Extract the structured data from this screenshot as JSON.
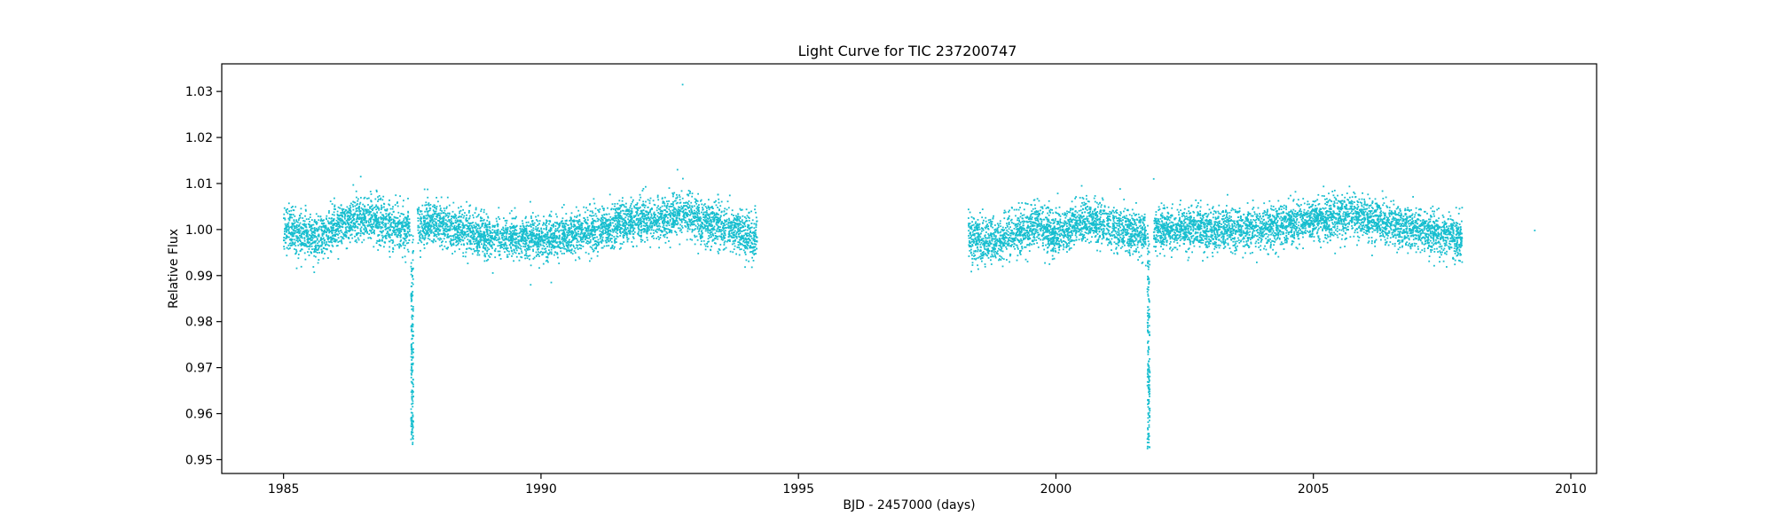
{
  "chart_data": {
    "type": "scatter",
    "title": "Light Curve for TIC 237200747",
    "xlabel": "BJD - 2457000 (days)",
    "ylabel": "Relative Flux",
    "xlim": [
      1983.8,
      2010.5
    ],
    "ylim": [
      0.947,
      1.036
    ],
    "xticks": [
      1985,
      1990,
      1995,
      2000,
      2005,
      2010
    ],
    "xtick_labels": [
      "1985",
      "1990",
      "1995",
      "2000",
      "2005",
      "2010"
    ],
    "yticks": [
      0.95,
      0.96,
      0.97,
      0.98,
      0.99,
      1.0,
      1.01,
      1.02,
      1.03
    ],
    "ytick_labels": [
      "0.95",
      "0.96",
      "0.97",
      "0.98",
      "0.99",
      "1.00",
      "1.01",
      "1.02",
      "1.03"
    ],
    "grid": false,
    "legend": "none",
    "marker_color": "#17becf",
    "series": [
      {
        "segments": [
          {
            "x_start": 1985.0,
            "x_end": 1987.45,
            "baseline": 1.0005,
            "scatter": 0.0024
          },
          {
            "x_start": 1987.6,
            "x_end": 1994.2,
            "baseline": 1.0,
            "scatter": 0.0023
          },
          {
            "x_start": 1998.3,
            "x_end": 2001.75,
            "baseline": 1.0,
            "scatter": 0.0024
          },
          {
            "x_start": 2001.9,
            "x_end": 2007.9,
            "baseline": 1.0005,
            "scatter": 0.0022
          }
        ],
        "transits": [
          {
            "center": 1987.5,
            "depth_min": 0.954,
            "width": 0.12
          },
          {
            "center": 2001.8,
            "depth_min": 0.952,
            "width": 0.12
          }
        ],
        "trend_points": [
          {
            "x": 1985.0,
            "y": 1.0005
          },
          {
            "x": 1985.6,
            "y": 0.998
          },
          {
            "x": 1986.5,
            "y": 1.003
          },
          {
            "x": 1987.3,
            "y": 1.0
          },
          {
            "x": 1988.0,
            "y": 1.001
          },
          {
            "x": 1989.0,
            "y": 0.9985
          },
          {
            "x": 1990.0,
            "y": 0.998
          },
          {
            "x": 1991.0,
            "y": 1.0
          },
          {
            "x": 1992.0,
            "y": 1.002
          },
          {
            "x": 1992.8,
            "y": 1.003
          },
          {
            "x": 1993.5,
            "y": 1.001
          },
          {
            "x": 1994.2,
            "y": 0.998
          },
          {
            "x": 1998.3,
            "y": 0.998
          },
          {
            "x": 1999.0,
            "y": 0.998
          },
          {
            "x": 1999.6,
            "y": 1.001
          },
          {
            "x": 2000.0,
            "y": 0.999
          },
          {
            "x": 2000.6,
            "y": 1.002
          },
          {
            "x": 2001.7,
            "y": 0.999
          },
          {
            "x": 2002.0,
            "y": 1.0
          },
          {
            "x": 2003.0,
            "y": 1.0
          },
          {
            "x": 2004.0,
            "y": 1.0
          },
          {
            "x": 2005.0,
            "y": 1.002
          },
          {
            "x": 2005.8,
            "y": 1.003
          },
          {
            "x": 2006.6,
            "y": 1.001
          },
          {
            "x": 2007.9,
            "y": 0.998
          }
        ],
        "outliers": [
          {
            "x": 1992.75,
            "y": 1.0315
          },
          {
            "x": 2009.3,
            "y": 0.9998
          },
          {
            "x": 1986.5,
            "y": 1.0115
          },
          {
            "x": 1992.65,
            "y": 1.013
          },
          {
            "x": 2001.9,
            "y": 1.011
          },
          {
            "x": 2000.5,
            "y": 1.0095
          },
          {
            "x": 1989.8,
            "y": 0.988
          },
          {
            "x": 1990.2,
            "y": 0.9885
          }
        ]
      }
    ]
  }
}
